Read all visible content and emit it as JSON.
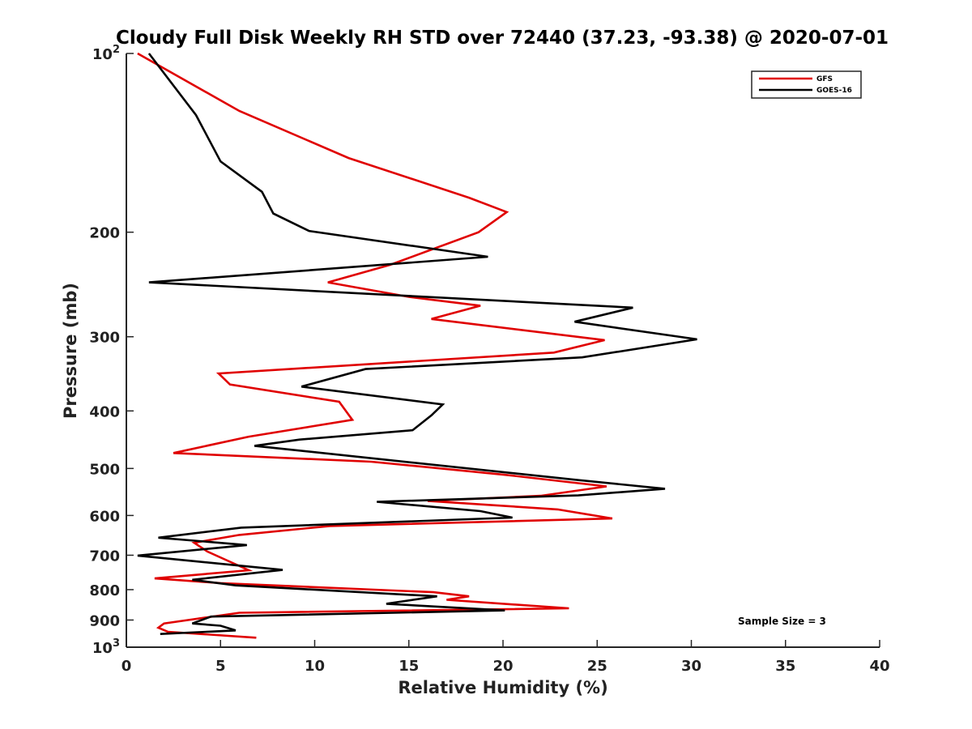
{
  "chart_data": {
    "type": "line",
    "title": "Cloudy Full Disk Weekly RH STD over 72440 (37.23, -93.38) @ 2020-07-01",
    "xlabel": "Relative Humidity (%)",
    "ylabel": "Pressure (mb)",
    "xlim": [
      0,
      40
    ],
    "ylim": [
      100,
      1000
    ],
    "yscale": "log",
    "y_reversed": true,
    "x_ticks": [
      "0",
      "5",
      "10",
      "15",
      "20",
      "25",
      "30",
      "35",
      "40"
    ],
    "y_ticks": [
      {
        "value": 100,
        "base": "10",
        "exp": "2"
      },
      {
        "value": 200,
        "label": "200"
      },
      {
        "value": 300,
        "label": "300"
      },
      {
        "value": 400,
        "label": "400"
      },
      {
        "value": 500,
        "label": "500"
      },
      {
        "value": 600,
        "label": "600"
      },
      {
        "value": 700,
        "label": "700"
      },
      {
        "value": 800,
        "label": "800"
      },
      {
        "value": 900,
        "label": "900"
      },
      {
        "value": 1000,
        "base": "10",
        "exp": "3"
      }
    ],
    "grid": false,
    "legend_position": "top-right",
    "annotation": "Sample Size = 3",
    "series": [
      {
        "name": "GFS",
        "color": "#e00000",
        "points": [
          [
            0.6,
            100
          ],
          [
            6.0,
            125
          ],
          [
            11.8,
            150
          ],
          [
            18.2,
            175
          ],
          [
            20.2,
            185
          ],
          [
            18.7,
            200
          ],
          [
            14.0,
            227
          ],
          [
            10.7,
            243
          ],
          [
            15.0,
            257
          ],
          [
            18.8,
            266
          ],
          [
            16.2,
            280
          ],
          [
            25.4,
            304
          ],
          [
            22.7,
            319
          ],
          [
            4.9,
            346
          ],
          [
            5.5,
            361
          ],
          [
            11.3,
            386
          ],
          [
            12.0,
            414
          ],
          [
            6.5,
            442
          ],
          [
            2.5,
            471
          ],
          [
            13.0,
            487
          ],
          [
            20.0,
            512
          ],
          [
            25.5,
            536
          ],
          [
            22.0,
            556
          ],
          [
            16.0,
            567
          ],
          [
            22.9,
            586
          ],
          [
            25.8,
            607
          ],
          [
            10.8,
            625
          ],
          [
            6.0,
            647
          ],
          [
            3.6,
            667
          ],
          [
            4.3,
            690
          ],
          [
            6.5,
            742
          ],
          [
            1.5,
            766
          ],
          [
            5.0,
            780
          ],
          [
            16.3,
            808
          ],
          [
            18.2,
            821
          ],
          [
            17.0,
            832
          ],
          [
            23.5,
            860
          ],
          [
            6.0,
            875
          ],
          [
            2.0,
            912
          ],
          [
            1.7,
            927
          ],
          [
            2.2,
            942
          ],
          [
            6.9,
            964
          ]
        ]
      },
      {
        "name": "GOES-16",
        "color": "#000000",
        "points": [
          [
            1.2,
            100
          ],
          [
            3.7,
            127
          ],
          [
            5.0,
            152
          ],
          [
            7.2,
            171
          ],
          [
            7.8,
            186
          ],
          [
            9.7,
            199
          ],
          [
            19.2,
            220
          ],
          [
            1.2,
            243
          ],
          [
            26.9,
            268
          ],
          [
            23.8,
            283
          ],
          [
            30.3,
            303
          ],
          [
            24.2,
            325
          ],
          [
            12.7,
            340
          ],
          [
            9.3,
            364
          ],
          [
            16.8,
            390
          ],
          [
            16.2,
            407
          ],
          [
            15.2,
            431
          ],
          [
            9.2,
            447
          ],
          [
            6.8,
            458
          ],
          [
            24.0,
            523
          ],
          [
            28.6,
            541
          ],
          [
            24.0,
            555
          ],
          [
            13.3,
            569
          ],
          [
            18.8,
            590
          ],
          [
            20.5,
            605
          ],
          [
            6.1,
            629
          ],
          [
            1.7,
            654
          ],
          [
            6.4,
            673
          ],
          [
            0.6,
            701
          ],
          [
            8.3,
            741
          ],
          [
            3.5,
            770
          ],
          [
            5.8,
            787
          ],
          [
            16.5,
            821
          ],
          [
            13.8,
            845
          ],
          [
            20.1,
            867
          ],
          [
            4.5,
            888
          ],
          [
            3.5,
            912
          ],
          [
            5.0,
            920
          ],
          [
            5.8,
            937
          ],
          [
            1.8,
            950
          ]
        ]
      }
    ]
  }
}
